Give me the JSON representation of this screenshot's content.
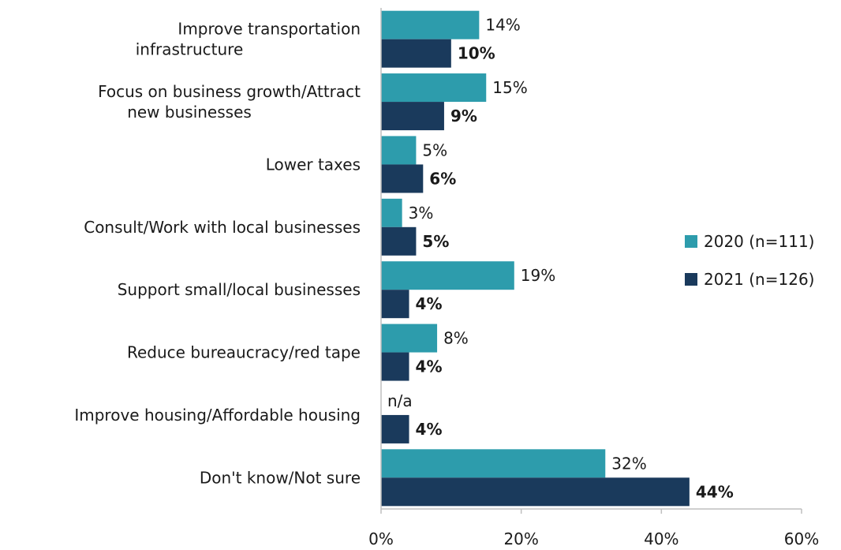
{
  "chart_data": {
    "type": "bar",
    "orientation": "horizontal",
    "categories": [
      "Improve transportation infrastructure",
      "Focus on business growth/Attract new businesses",
      "Lower taxes",
      "Consult/Work with local businesses",
      "Support small/local businesses",
      "Reduce bureaucracy/red tape",
      "Improve housing/Affordable housing",
      "Don't know/Not sure"
    ],
    "series": [
      {
        "name": "2020 (n=111)",
        "color": "#2d9cac",
        "values": [
          14,
          15,
          5,
          3,
          19,
          8,
          null,
          32
        ],
        "labels": [
          "14%",
          "15%",
          "5%",
          "3%",
          "19%",
          "8%",
          "n/a",
          "32%"
        ],
        "bold": false
      },
      {
        "name": "2021 (n=126)",
        "color": "#1a3a5c",
        "values": [
          10,
          9,
          6,
          5,
          4,
          4,
          4,
          44
        ],
        "labels": [
          "10%",
          "9%",
          "6%",
          "5%",
          "4%",
          "4%",
          "4%",
          "44%"
        ],
        "bold": true
      }
    ],
    "xlim": [
      0,
      60
    ],
    "xticks": [
      "0%",
      "20%",
      "40%",
      "60%"
    ],
    "grid": false,
    "legend_position": "right"
  }
}
